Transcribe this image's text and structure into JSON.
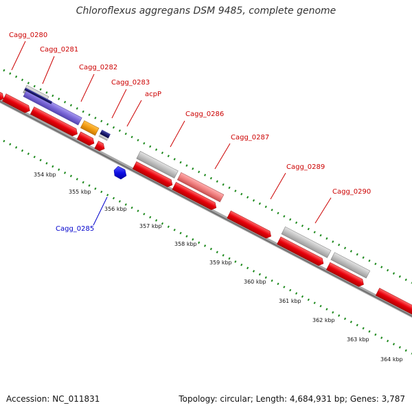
{
  "header": {
    "title": "Chloroflexus aggregans DSM 9485, complete genome"
  },
  "footer": {
    "accession": "Accession: NC_011831",
    "stats": "Topology: circular; Length: 4,684,931 bp; Genes: 3,787"
  },
  "ticks": [
    "354 kbp",
    "355 kbp",
    "356 kbp",
    "357 kbp",
    "358 kbp",
    "359 kbp",
    "360 kbp",
    "361 kbp",
    "362 kbp",
    "363 kbp",
    "364 kbp"
  ],
  "gene_labels": {
    "cagg_0280": "Cagg_0280",
    "cagg_0281": "Cagg_0281",
    "cagg_0282": "Cagg_0282",
    "cagg_0283": "Cagg_0283",
    "acpp": "acpP",
    "cagg_0285": "Cagg_0285",
    "cagg_0286": "Cagg_0286",
    "cagg_0287": "Cagg_0287",
    "cagg_0289": "Cagg_0289",
    "cagg_0290": "Cagg_0290"
  },
  "colors": {
    "backbone": "#808080",
    "cds": "#e8000b",
    "gene_grey": "#c0c0c0",
    "gene_purple": "#7b68d8",
    "gene_navy": "#1a1a6e",
    "gene_orange": "#f39c12",
    "gene_pink": "#f08080",
    "gene_blue": "#1010e6",
    "dots": "#1e8a1e",
    "label_red": "#cc0000",
    "label_blue": "#0000cc"
  }
}
